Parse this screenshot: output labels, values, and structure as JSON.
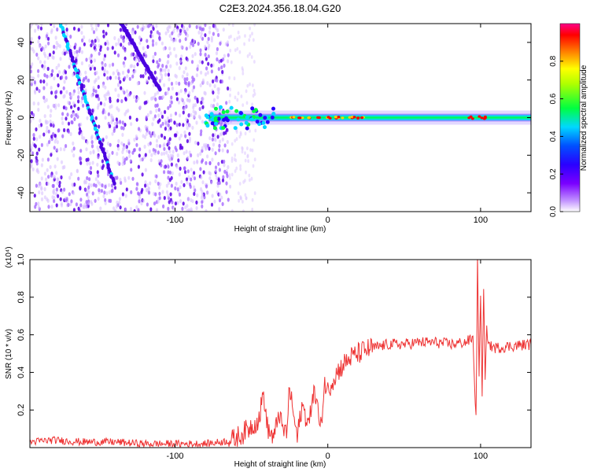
{
  "figure_title": "C2E3.2024.356.18.04.G20",
  "chart_data": [
    {
      "type": "heatmap",
      "title": "C2E3.2024.356.18.04.G20",
      "xlabel": "Height of straight line (km)",
      "ylabel": "Frequency (Hz)",
      "xlim": [
        -195,
        133
      ],
      "ylim": [
        -50,
        50
      ],
      "xticks": [
        -100,
        0,
        100
      ],
      "xtick_labels": [
        "-100",
        "0",
        "100"
      ],
      "yticks": [
        -40,
        -20,
        0,
        20,
        40
      ],
      "ytick_labels": [
        "-40",
        "-20",
        "0",
        "20",
        "40"
      ],
      "colorbar": {
        "label": "Normalized spectral amplitude",
        "range": [
          0,
          1
        ],
        "ticks": [
          0.0,
          0.2,
          0.4,
          0.6,
          0.8
        ],
        "tick_labels": [
          "0.0",
          "0.2",
          "0.4",
          "0.6",
          "0.8"
        ],
        "colors": [
          "#ffffff",
          "#b070ff",
          "#6a00ff",
          "#0000ff",
          "#00d8ff",
          "#00ff40",
          "#ffff00",
          "#ff8000",
          "#ff0000",
          "#ff0080"
        ]
      },
      "features": {
        "noise_region_x": [
          -195,
          -65
        ],
        "signal_band_x": [
          -78,
          133
        ],
        "signal_band_freq": 0,
        "diagonal_streak_1": {
          "x": [
            -175,
            -140
          ],
          "y": [
            50,
            -35
          ]
        },
        "diagonal_streak_2": {
          "x": [
            -135,
            -110
          ],
          "y": [
            50,
            15
          ]
        }
      }
    },
    {
      "type": "line",
      "xlabel": "Height of straight line (km)",
      "ylabel": "SNR (10 * v/v)",
      "y_multiplier": "(x10⁴)",
      "xlim": [
        -195,
        133
      ],
      "ylim": [
        0,
        1.0
      ],
      "xticks": [
        -100,
        0,
        100
      ],
      "xtick_labels": [
        "-100",
        "0",
        "100"
      ],
      "yticks": [
        0.2,
        0.4,
        0.6,
        0.8,
        1.0
      ],
      "ytick_labels": [
        "0.2",
        "0.4",
        "0.6",
        "0.8",
        "1.0"
      ],
      "series": [
        {
          "color": "#ee3333",
          "x": [
            -195,
            -180,
            -160,
            -140,
            -120,
            -100,
            -80,
            -70,
            -62,
            -55,
            -45,
            -42,
            -40,
            -38,
            -35,
            -32,
            -30,
            -27,
            -25,
            -22,
            -20,
            -17,
            -15,
            -12,
            -10,
            -7,
            -5,
            -2,
            0,
            3,
            6,
            10,
            15,
            20,
            25,
            30,
            35,
            40,
            50,
            60,
            70,
            80,
            90,
            95,
            97,
            98,
            99,
            100,
            101,
            102,
            103,
            104,
            106,
            110,
            120,
            133
          ],
          "y": [
            0.03,
            0.04,
            0.03,
            0.03,
            0.02,
            0.02,
            0.02,
            0.03,
            0.04,
            0.08,
            0.15,
            0.3,
            0.12,
            0.08,
            0.05,
            0.2,
            0.1,
            0.08,
            0.32,
            0.15,
            0.05,
            0.22,
            0.18,
            0.12,
            0.3,
            0.25,
            0.07,
            0.35,
            0.3,
            0.36,
            0.4,
            0.44,
            0.48,
            0.5,
            0.52,
            0.53,
            0.54,
            0.55,
            0.55,
            0.56,
            0.56,
            0.55,
            0.56,
            0.58,
            0.15,
            1.0,
            0.4,
            0.78,
            0.3,
            0.82,
            0.35,
            0.62,
            0.54,
            0.53,
            0.54,
            0.55
          ]
        }
      ]
    }
  ]
}
